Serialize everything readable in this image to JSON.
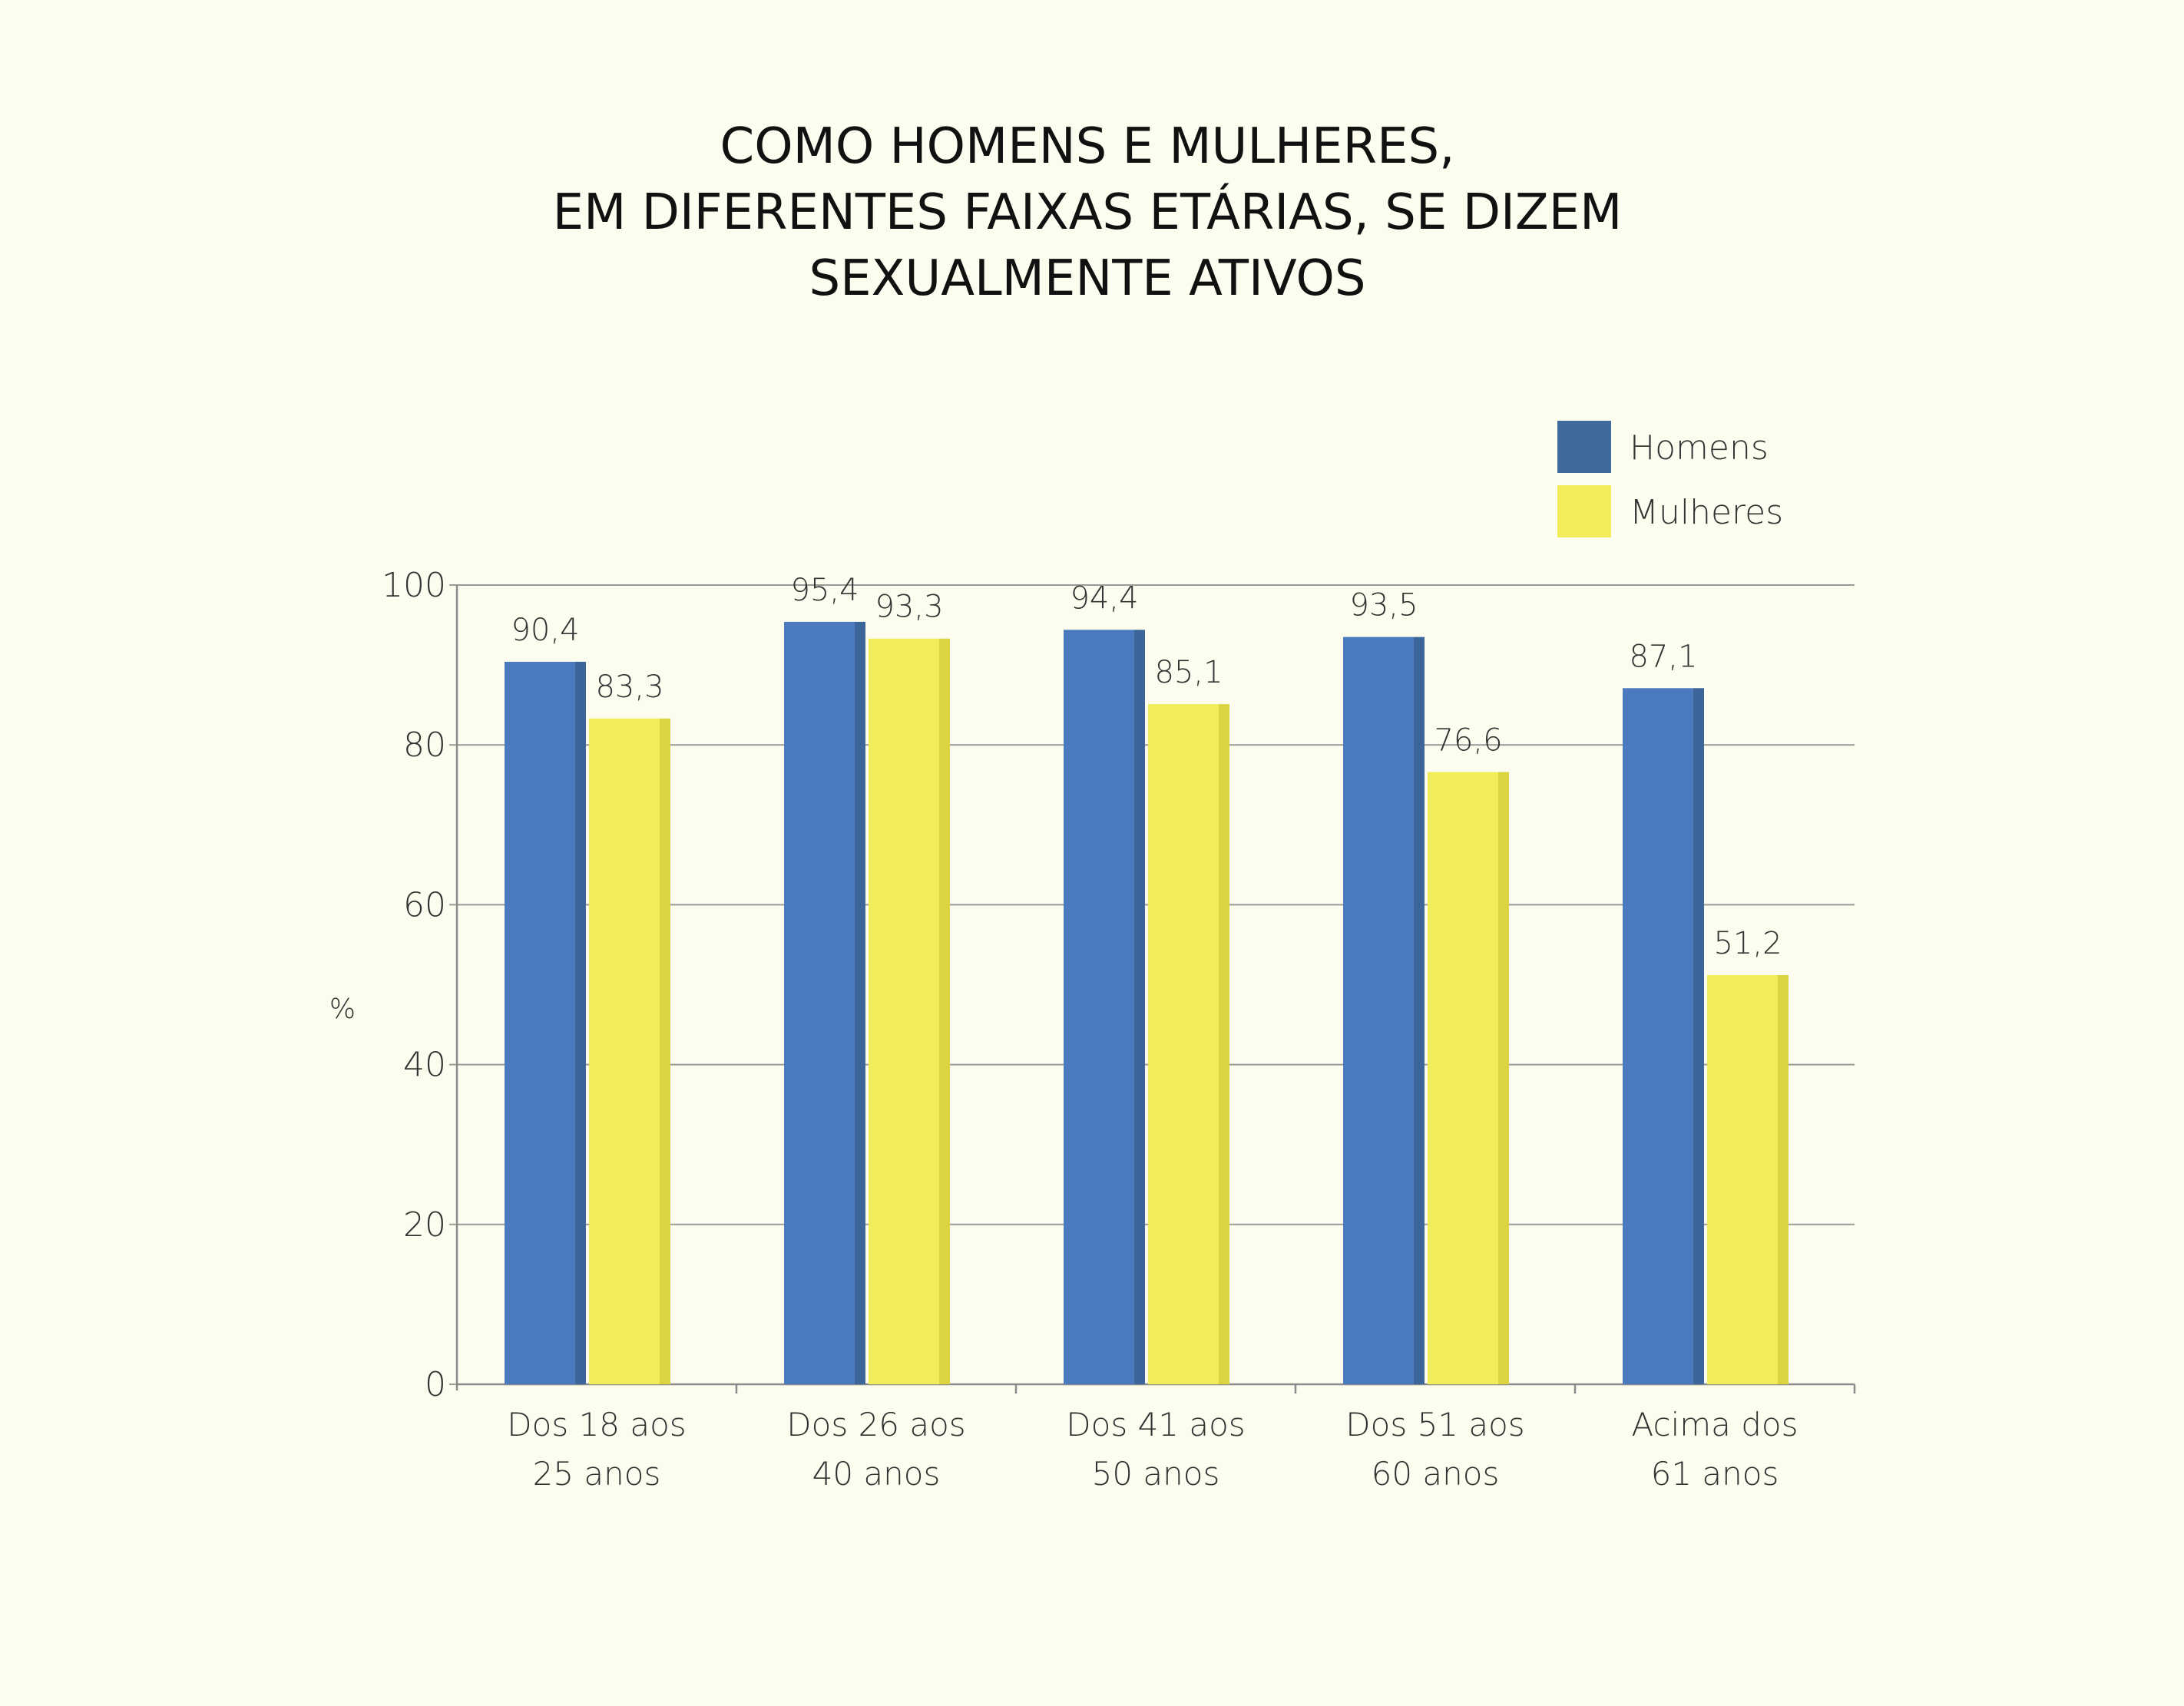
{
  "chart_data": {
    "type": "bar",
    "title_lines": [
      "COMO HOMENS E MULHERES,",
      "EM DIFERENTES FAIXAS ETÁRIAS, SE DIZEM",
      "SEXUALMENTE ATIVOS"
    ],
    "xlabel": "",
    "ylabel": "%",
    "ylim": [
      0,
      100
    ],
    "yticks": [
      "0",
      "20",
      "40",
      "60",
      "80",
      "100"
    ],
    "categories": [
      [
        "Dos 18 aos",
        "25 anos"
      ],
      [
        "Dos 26 aos",
        "40 anos"
      ],
      [
        "Dos 41 aos",
        "50 anos"
      ],
      [
        "Dos 51 aos",
        "60 anos"
      ],
      [
        "Acima dos",
        "61 anos"
      ]
    ],
    "series": [
      {
        "name": "Homens",
        "color": "#4b7bbe",
        "shade": "#3c6599",
        "legend_color": "#3f6a9b",
        "values": [
          90.4,
          95.4,
          94.4,
          93.5,
          87.1
        ],
        "labels": [
          "90,4",
          "95,4",
          "94,4",
          "93,5",
          "87,1"
        ]
      },
      {
        "name": "Mulheres",
        "color": "#f0ec5a",
        "shade": "#d9d440",
        "legend_color": "#f0ec5a",
        "values": [
          83.3,
          93.3,
          85.1,
          76.6,
          51.2
        ],
        "labels": [
          "83,3",
          "93,3",
          "85,1",
          "76,6",
          "51,2"
        ]
      }
    ],
    "grid": true,
    "legend_position": "top-right"
  }
}
